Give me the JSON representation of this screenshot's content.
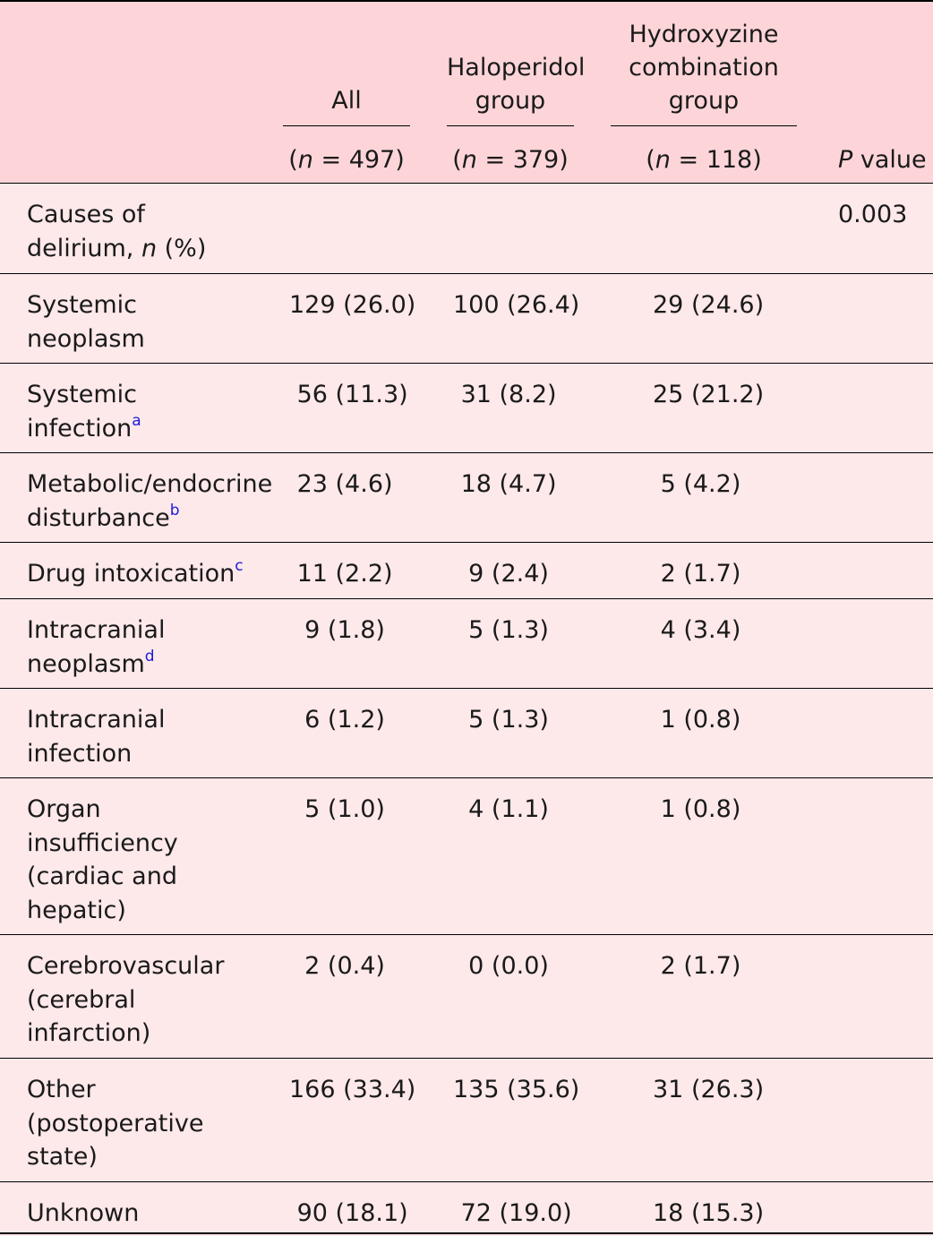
{
  "header": {
    "col_all": "All",
    "col_haloperidol": [
      "Haloperidol",
      "group"
    ],
    "col_hydroxyzine": [
      "Hydroxyzine",
      "combination",
      "group"
    ],
    "n_all": "497",
    "n_haloperidol": "379",
    "n_hydroxyzine": "118",
    "n_prefix": "(",
    "n_symbol": "n",
    "n_eq": " = ",
    "n_suffix": ")",
    "p_symbol": "P",
    "p_label": " value"
  },
  "section": {
    "label_line1": "Causes of",
    "label_line2_prefix": "delirium, ",
    "label_italic": "n",
    "label_line2_suffix": " (%)",
    "p_value": "0.003"
  },
  "rows": [
    {
      "cause": [
        "Systemic",
        "neoplasm"
      ],
      "sup": "",
      "all": "129 (26.0)",
      "haloperidol": "100 (26.4)",
      "hydroxyzine": "29 (24.6)"
    },
    {
      "cause": [
        "Systemic",
        "infection"
      ],
      "sup": "a",
      "all": " 56 (11.3)",
      "haloperidol": " 31 (8.2)",
      "hydroxyzine": "25 (21.2)"
    },
    {
      "cause": [
        "Metabolic/endocrine",
        "disturbance"
      ],
      "sup": "b",
      "all": " 23 (4.6)",
      "haloperidol": " 18 (4.7)",
      "hydroxyzine": " 5 (4.2)"
    },
    {
      "cause": [
        "Drug intoxication"
      ],
      "sup": "c",
      "all": " 11 (2.2)",
      "haloperidol": "  9 (2.4)",
      "hydroxyzine": " 2 (1.7)"
    },
    {
      "cause": [
        "Intracranial",
        "neoplasm"
      ],
      "sup": "d",
      "all": "  9 (1.8)",
      "haloperidol": "  5 (1.3)",
      "hydroxyzine": " 4 (3.4)"
    },
    {
      "cause": [
        "Intracranial",
        "infection"
      ],
      "sup": "",
      "all": "  6 (1.2)",
      "haloperidol": "  5 (1.3)",
      "hydroxyzine": " 1 (0.8)"
    },
    {
      "cause": [
        "Organ",
        "insufficiency",
        "(cardiac and",
        "hepatic)"
      ],
      "sup": "",
      "all": "  5 (1.0)",
      "haloperidol": "  4 (1.1)",
      "hydroxyzine": " 1 (0.8)"
    },
    {
      "cause": [
        "Cerebrovascular",
        "(cerebral",
        "infarction)"
      ],
      "sup": "",
      "all": "  2 (0.4)",
      "haloperidol": "  0 (0.0)",
      "hydroxyzine": " 2 (1.7)"
    },
    {
      "cause": [
        "Other",
        "(postoperative",
        "state)"
      ],
      "sup": "",
      "all": "166 (33.4)",
      "haloperidol": "135 (35.6)",
      "hydroxyzine": "31 (26.3)"
    },
    {
      "cause": [
        "Unknown"
      ],
      "sup": "",
      "all": " 90 (18.1)",
      "haloperidol": " 72 (19.0)",
      "hydroxyzine": "18 (15.3)"
    }
  ]
}
